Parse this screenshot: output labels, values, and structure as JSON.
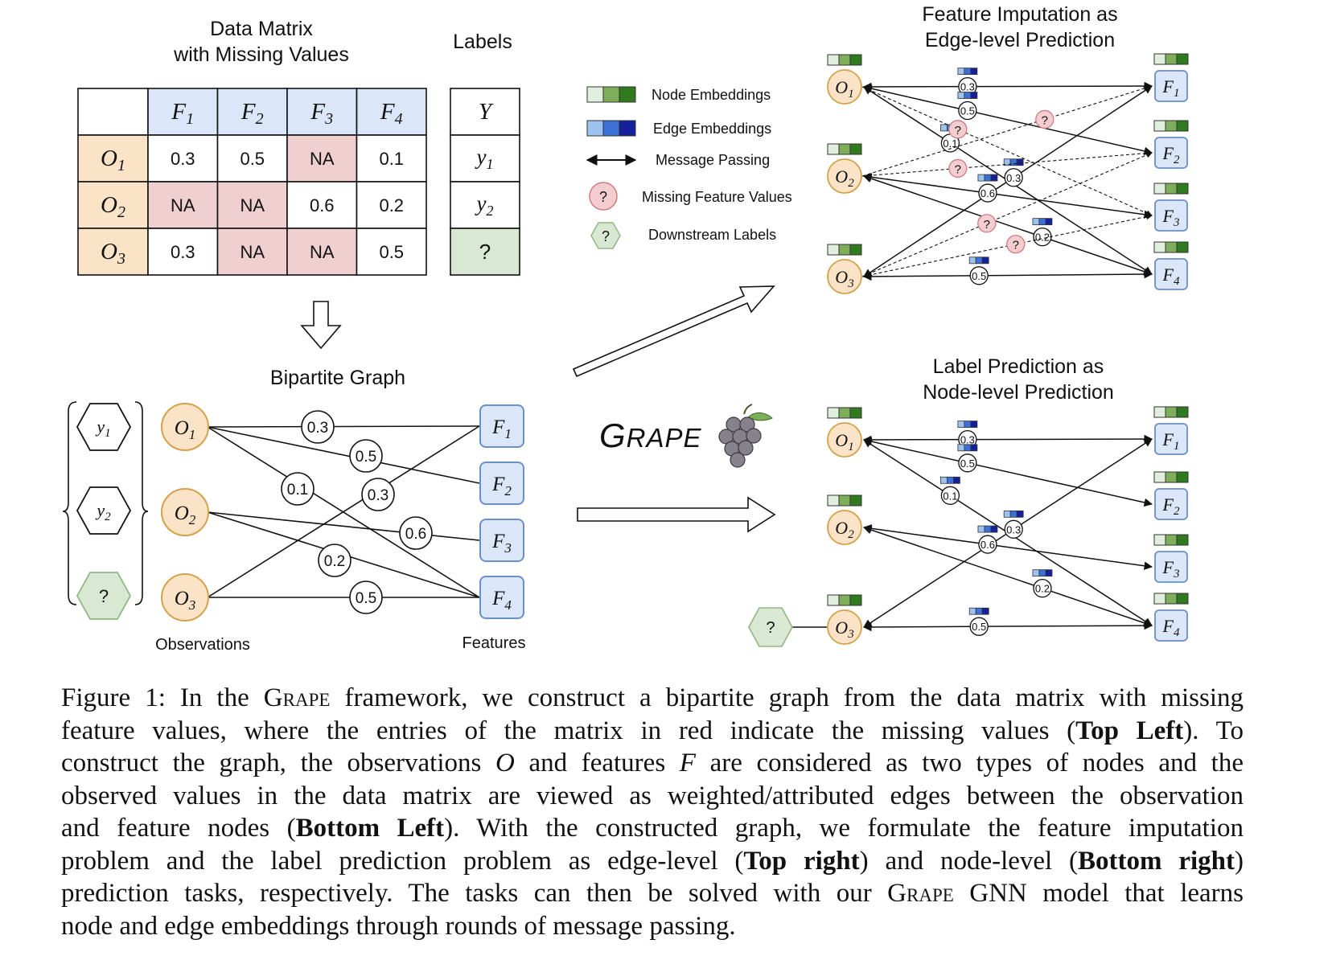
{
  "panels": {
    "matrix_title_1": "Data Matrix",
    "matrix_title_2": "with Missing Values",
    "labels_title": "Labels",
    "bipartite_title": "Bipartite Graph",
    "observations_label": "Observations",
    "features_label": "Features",
    "imputation_title_1": "Feature Imputation as",
    "imputation_title_2": "Edge-level Prediction",
    "prediction_title_1": "Label Prediction as",
    "prediction_title_2": "Node-level Prediction",
    "grape_logo": "GRAPE"
  },
  "matrix": {
    "columns": [
      "F1",
      "F2",
      "F3",
      "F4"
    ],
    "rows": [
      {
        "name": "O1",
        "values": [
          "0.3",
          "0.5",
          "NA",
          "0.1"
        ]
      },
      {
        "name": "O2",
        "values": [
          "NA",
          "NA",
          "0.6",
          "0.2"
        ]
      },
      {
        "name": "O3",
        "values": [
          "0.3",
          "NA",
          "NA",
          "0.5"
        ]
      }
    ],
    "label_header": "Y",
    "labels": [
      "y1",
      "y2",
      "?"
    ]
  },
  "legend": {
    "node_embeddings": "Node Embeddings",
    "edge_embeddings": "Edge Embeddings",
    "message_passing": "Message Passing",
    "missing_values": "Missing Feature Values",
    "downstream_labels": "Downstream Labels",
    "missing_symbol": "?",
    "label_symbol": "?"
  },
  "graph": {
    "observations": [
      "O1",
      "O2",
      "O3"
    ],
    "features": [
      "F1",
      "F2",
      "F3",
      "F4"
    ],
    "labels": [
      "y1",
      "y2",
      "?"
    ],
    "edges": [
      {
        "obs": "O1",
        "feat": "F1",
        "value": "0.3"
      },
      {
        "obs": "O1",
        "feat": "F2",
        "value": "0.5"
      },
      {
        "obs": "O1",
        "feat": "F4",
        "value": "0.1"
      },
      {
        "obs": "O3",
        "feat": "F1",
        "value": "0.3"
      },
      {
        "obs": "O2",
        "feat": "F3",
        "value": "0.6"
      },
      {
        "obs": "O2",
        "feat": "F4",
        "value": "0.2"
      },
      {
        "obs": "O3",
        "feat": "F4",
        "value": "0.5"
      }
    ],
    "missing_symbol": "?",
    "label_node": "?"
  },
  "colors": {
    "obs_fill": "#fbe3c8",
    "obs_stroke": "#d4a24a",
    "feat_fill": "#dbe6f8",
    "feat_stroke": "#6b8fc7",
    "na_fill": "#efcfd0",
    "label_fill": "#d9e8d3",
    "label_stroke": "#8fb883",
    "missing_fill": "#f4cdd0",
    "missing_stroke": "#d07a82"
  },
  "caption": {
    "lines": [
      [
        "Figure 1: In the ",
        {
          "sc": "Grape"
        },
        " framework, we construct a bipartite graph from the data matrix with missing"
      ],
      [
        "feature values, where the entries of the matrix in red indicate the missing values (",
        {
          "b": "Top Left"
        },
        ").  To"
      ],
      [
        "construct the graph, the observations ",
        {
          "i": "O"
        },
        " and features ",
        {
          "i": "F"
        },
        " are considered as two types of nodes and the"
      ],
      [
        "observed values in the data matrix are viewed as weighted/attributed edges between the observation"
      ],
      [
        "and feature nodes (",
        {
          "b": "Bottom Left"
        },
        "). With the constructed graph, we formulate the feature imputation"
      ],
      [
        "problem and the label prediction problem as edge-level (",
        {
          "b": "Top right"
        },
        ") and node-level (",
        {
          "b": "Bottom right"
        },
        ")"
      ],
      [
        "prediction tasks, respectively. The tasks can then be solved with our ",
        {
          "sc": "Grape"
        },
        " GNN model that learns"
      ],
      [
        "node and edge embeddings through rounds of message passing."
      ]
    ]
  }
}
